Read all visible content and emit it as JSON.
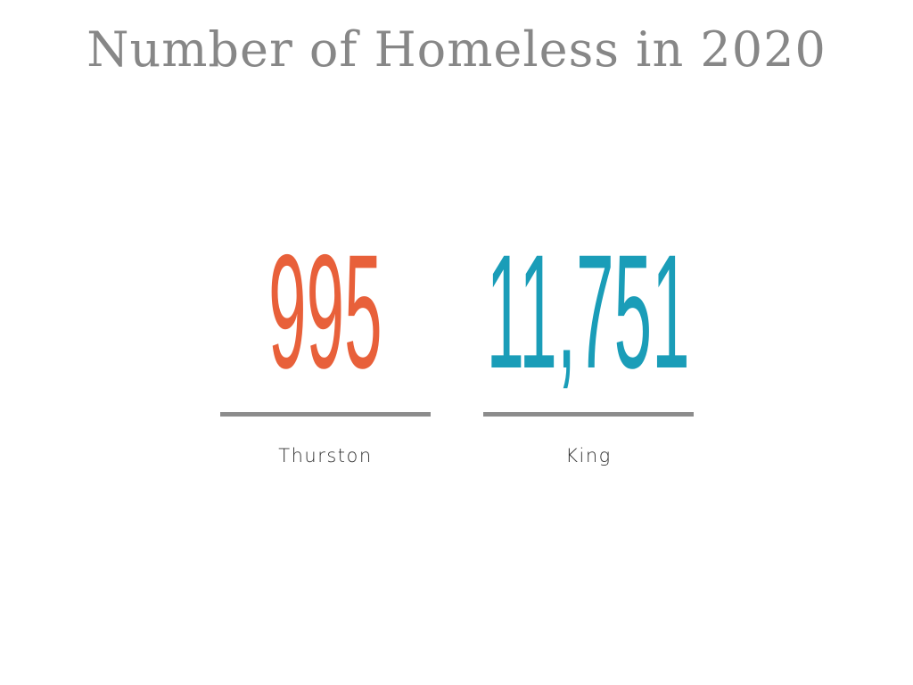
{
  "title": "Number of Homeless in 2020",
  "chart_data": {
    "type": "table",
    "title": "Number of Homeless in 2020",
    "categories": [
      "Thurston",
      "King"
    ],
    "values": [
      995,
      11751
    ],
    "display_values": [
      "995",
      "11,751"
    ],
    "colors": [
      "#e8603a",
      "#1a9db8"
    ]
  }
}
